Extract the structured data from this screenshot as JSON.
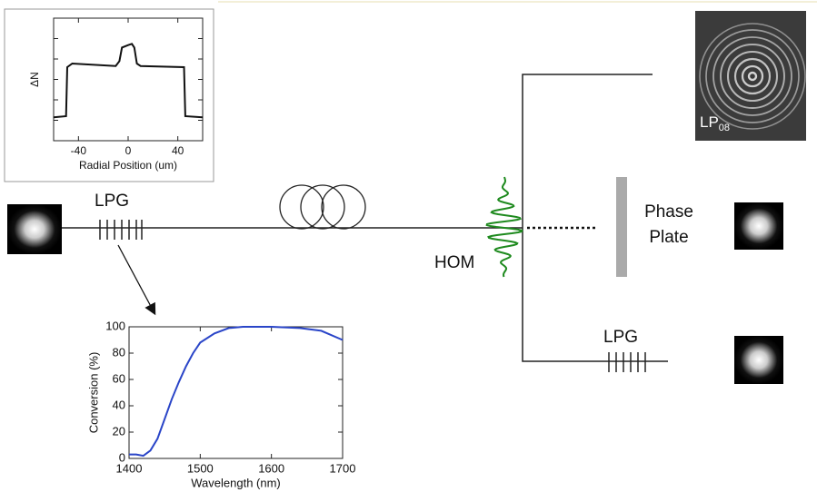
{
  "diagram": {
    "labels": {
      "lpg_input": "LPG",
      "hom": "HOM",
      "phase_plate": "Phase Plate",
      "lpg_output": "LPG"
    },
    "mode_image_label": {
      "text": "LP",
      "subscript": "08"
    }
  },
  "chart_data": [
    {
      "type": "line",
      "ylabel": "ΔN",
      "xlabel": "Radial Position (um)",
      "x": [
        -60,
        -50,
        -49,
        -45,
        -10,
        -7,
        -5,
        0,
        3,
        5,
        7,
        10,
        45,
        46,
        60
      ],
      "values": [
        0.19,
        0.2,
        0.6,
        0.63,
        0.61,
        0.65,
        0.76,
        0.78,
        0.79,
        0.76,
        0.63,
        0.61,
        0.6,
        0.2,
        0.19
      ],
      "xlim": [
        -60,
        60
      ],
      "ylim": [
        0,
        1
      ],
      "xticks": [
        -40,
        0,
        40
      ],
      "color": "#111111"
    },
    {
      "type": "line",
      "ylabel": "Conversion (%)",
      "xlabel": "Wavelength (nm)",
      "x": [
        1400,
        1410,
        1420,
        1430,
        1440,
        1450,
        1460,
        1470,
        1480,
        1490,
        1500,
        1520,
        1540,
        1560,
        1600,
        1640,
        1670,
        1700
      ],
      "values": [
        3,
        3,
        2,
        6,
        15,
        30,
        45,
        58,
        70,
        80,
        88,
        95,
        99,
        100,
        100,
        99,
        97,
        90
      ],
      "xlim": [
        1400,
        1700
      ],
      "ylim": [
        0,
        100
      ],
      "xticks": [
        1400,
        1500,
        1600,
        1700
      ],
      "yticks": [
        0,
        20,
        40,
        60,
        80,
        100
      ],
      "color": "#2a45c8"
    }
  ]
}
